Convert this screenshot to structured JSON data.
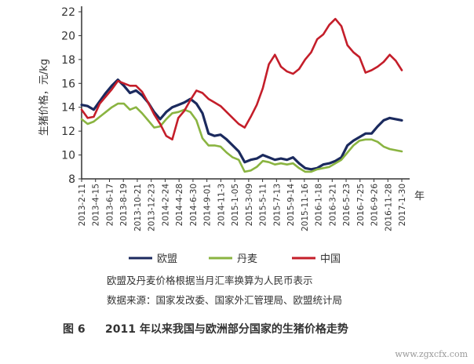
{
  "chart_data": {
    "type": "line",
    "ylabel": "生猪价格，元/kg",
    "xlabel": "年",
    "ylim": [
      8,
      22
    ],
    "yticks": [
      "22",
      "20",
      "18",
      "16",
      "14",
      "12",
      "10",
      "8"
    ],
    "xticks": [
      "2013-2-11",
      "2013-4-15",
      "2013-6-17",
      "2013-8-19",
      "2013-10-21",
      "2013-12-23",
      "2014-2-24",
      "2014-4-28",
      "2014-6-30",
      "2014-9-01",
      "2014-11-3",
      "2015-1-05",
      "2015-3-09",
      "2015-5-11",
      "2015-7-13",
      "2015-9-14",
      "2015-11-16",
      "2016-1-18",
      "2016-3-21",
      "2016-5-23",
      "2016-7-25",
      "2016-9-26",
      "2016-11-28",
      "2017-1-30"
    ],
    "grid": false,
    "legend_position": "bottom",
    "series": [
      {
        "name": "欧盟",
        "color": "#1b2a5e",
        "values": [
          14.2,
          14.1,
          13.8,
          14.5,
          15.2,
          15.8,
          16.3,
          15.8,
          15.2,
          15.4,
          15.0,
          14.4,
          13.6,
          13.0,
          13.6,
          14.0,
          14.2,
          14.4,
          14.7,
          14.3,
          13.5,
          11.8,
          11.6,
          11.7,
          11.3,
          10.8,
          10.3,
          9.4,
          9.6,
          9.7,
          10.0,
          9.8,
          9.6,
          9.7,
          9.6,
          9.8,
          9.3,
          8.9,
          8.8,
          8.9,
          9.2,
          9.3,
          9.5,
          9.8,
          10.8,
          11.2,
          11.5,
          11.8,
          11.8,
          12.4,
          12.9,
          13.1,
          13.0,
          12.9
        ]
      },
      {
        "name": "丹麦",
        "color": "#8ab441",
        "values": [
          13.0,
          12.6,
          12.8,
          13.2,
          13.6,
          14.0,
          14.3,
          14.3,
          13.8,
          14.0,
          13.5,
          12.9,
          12.3,
          12.4,
          13.0,
          13.5,
          13.6,
          13.8,
          13.6,
          12.9,
          11.4,
          10.8,
          10.8,
          10.7,
          10.2,
          9.8,
          9.6,
          8.6,
          8.7,
          9.0,
          9.5,
          9.4,
          9.2,
          9.3,
          9.2,
          9.3,
          8.9,
          8.6,
          8.6,
          8.8,
          8.9,
          9.0,
          9.3,
          9.6,
          10.2,
          10.8,
          11.2,
          11.3,
          11.3,
          11.1,
          10.7,
          10.5,
          10.4,
          10.3
        ]
      },
      {
        "name": "中国",
        "color": "#c41e2a",
        "values": [
          13.8,
          13.1,
          13.2,
          14.3,
          14.9,
          15.5,
          16.2,
          16.0,
          15.8,
          15.8,
          15.3,
          14.4,
          13.4,
          12.6,
          11.6,
          11.3,
          13.1,
          13.7,
          14.6,
          15.4,
          15.2,
          14.7,
          14.4,
          14.1,
          13.6,
          13.1,
          12.6,
          12.3,
          13.2,
          14.2,
          15.6,
          17.6,
          18.4,
          17.4,
          17.0,
          16.8,
          17.2,
          18.0,
          18.6,
          19.7,
          20.1,
          20.9,
          21.4,
          20.8,
          19.2,
          18.6,
          18.2,
          16.9,
          17.1,
          17.4,
          17.8,
          18.4,
          17.9,
          17.1
        ]
      }
    ],
    "notes": [
      "欧盟及丹麦价格根据当月汇率换算为人民币表示",
      "数据来源：国家发改委、国家外汇管理局、欧盟统计局"
    ],
    "figure_label": "图 6",
    "figure_title": "2011 年以来我国与欧洲部分国家的生猪价格走势",
    "watermark": "www.zgxcfx.com",
    "colors": {
      "axis": "#333333",
      "text": "#333333"
    }
  }
}
